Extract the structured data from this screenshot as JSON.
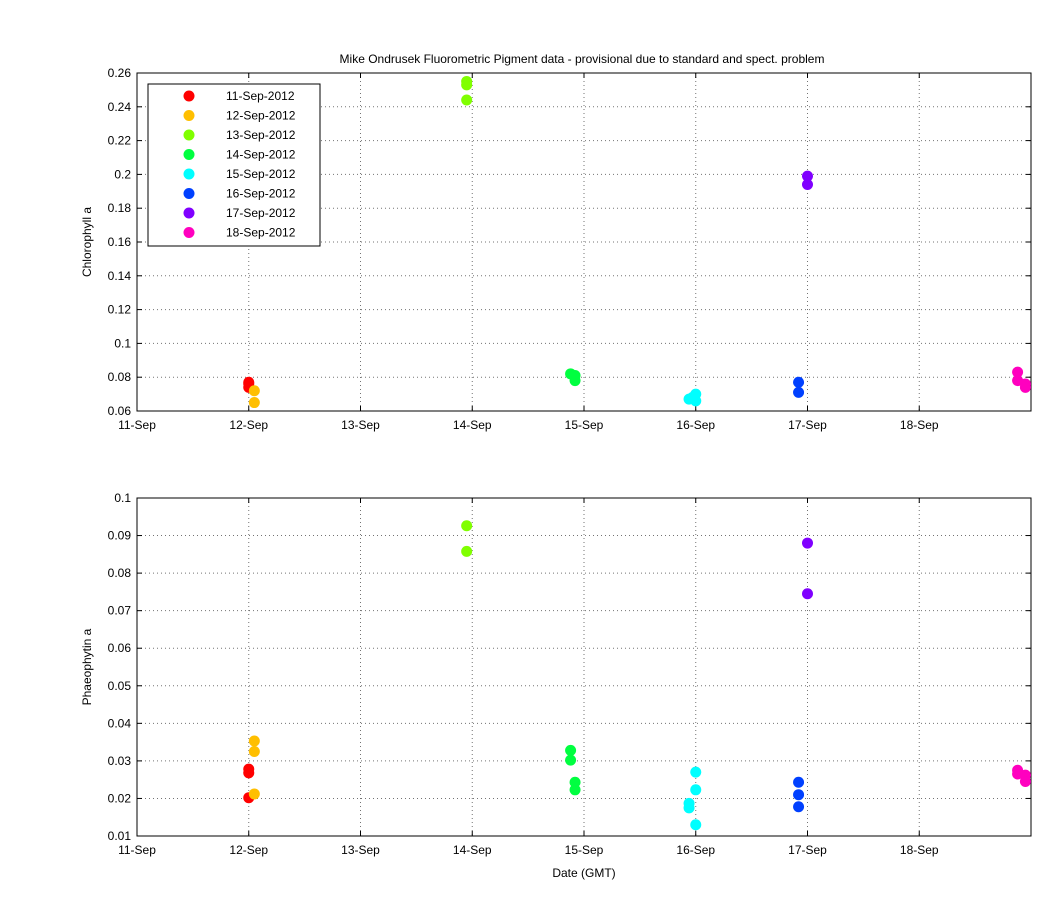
{
  "figure": {
    "title": "Mike Ondrusek Fluorometric Pigment data - provisional due to standard and spect. problem"
  },
  "chart_data": [
    {
      "type": "scatter",
      "title": "Mike Ondrusek Fluorometric Pigment data - provisional due to standard and spect. problem",
      "xlabel": "",
      "ylabel": "Chlorophyll a",
      "x_axis": "date (Sep 2012, GMT)",
      "xlim": [
        11.0,
        19.0
      ],
      "ylim": [
        0.06,
        0.26
      ],
      "xticks": [
        11,
        12,
        13,
        14,
        15,
        16,
        17,
        18
      ],
      "xticklabels": [
        "11-Sep",
        "12-Sep",
        "13-Sep",
        "14-Sep",
        "15-Sep",
        "16-Sep",
        "17-Sep",
        "18-Sep"
      ],
      "yticks": [
        0.06,
        0.08,
        0.1,
        0.12,
        0.14,
        0.16,
        0.18,
        0.2,
        0.22,
        0.24,
        0.26
      ],
      "yticklabels": [
        "0.06",
        "0.08",
        "0.1",
        "0.12",
        "0.14",
        "0.16",
        "0.18",
        "0.2",
        "0.22",
        "0.24",
        "0.26"
      ],
      "grid": true,
      "legend": "top-left",
      "series": [
        {
          "name": "11-Sep-2012",
          "color": "#ff0000",
          "points": [
            [
              12.0,
              0.077
            ],
            [
              12.0,
              0.074
            ],
            [
              12.0,
              0.076
            ]
          ]
        },
        {
          "name": "12-Sep-2012",
          "color": "#ffbf00",
          "points": [
            [
              12.05,
              0.072
            ],
            [
              12.05,
              0.065
            ]
          ]
        },
        {
          "name": "13-Sep-2012",
          "color": "#80ff00",
          "points": [
            [
              13.95,
              0.255
            ],
            [
              13.95,
              0.253
            ],
            [
              13.95,
              0.244
            ]
          ]
        },
        {
          "name": "14-Sep-2012",
          "color": "#00ff40",
          "points": [
            [
              14.88,
              0.082
            ],
            [
              14.92,
              0.081
            ],
            [
              14.92,
              0.078
            ]
          ]
        },
        {
          "name": "15-Sep-2012",
          "color": "#00ffff",
          "points": [
            [
              15.94,
              0.067
            ],
            [
              15.97,
              0.068
            ],
            [
              16.0,
              0.07
            ],
            [
              16.0,
              0.066
            ]
          ]
        },
        {
          "name": "16-Sep-2012",
          "color": "#0040ff",
          "points": [
            [
              16.92,
              0.077
            ],
            [
              16.92,
              0.071
            ]
          ]
        },
        {
          "name": "17-Sep-2012",
          "color": "#8000ff",
          "points": [
            [
              17.0,
              0.199
            ],
            [
              17.0,
              0.194
            ]
          ]
        },
        {
          "name": "18-Sep-2012",
          "color": "#ff00bf",
          "points": [
            [
              18.88,
              0.083
            ],
            [
              18.88,
              0.078
            ],
            [
              18.95,
              0.076
            ],
            [
              18.95,
              0.074
            ]
          ]
        }
      ]
    },
    {
      "type": "scatter",
      "title": "",
      "xlabel": "Date (GMT)",
      "ylabel": "Phaeophytin a",
      "x_axis": "date (Sep 2012, GMT)",
      "xlim": [
        11.0,
        19.0
      ],
      "ylim": [
        0.01,
        0.1
      ],
      "xticks": [
        11,
        12,
        13,
        14,
        15,
        16,
        17,
        18
      ],
      "xticklabels": [
        "11-Sep",
        "12-Sep",
        "13-Sep",
        "14-Sep",
        "15-Sep",
        "16-Sep",
        "17-Sep",
        "18-Sep"
      ],
      "yticks": [
        0.01,
        0.02,
        0.03,
        0.04,
        0.05,
        0.06,
        0.07,
        0.08,
        0.09,
        0.1
      ],
      "yticklabels": [
        "0.01",
        "0.02",
        "0.03",
        "0.04",
        "0.05",
        "0.06",
        "0.07",
        "0.08",
        "0.09",
        "0.1"
      ],
      "grid": true,
      "legend": "none",
      "series": [
        {
          "name": "11-Sep-2012",
          "color": "#ff0000",
          "points": [
            [
              12.0,
              0.0278
            ],
            [
              12.0,
              0.0268
            ],
            [
              12.0,
              0.0202
            ]
          ]
        },
        {
          "name": "12-Sep-2012",
          "color": "#ffbf00",
          "points": [
            [
              12.05,
              0.0353
            ],
            [
              12.05,
              0.0325
            ],
            [
              12.05,
              0.0212
            ]
          ]
        },
        {
          "name": "13-Sep-2012",
          "color": "#80ff00",
          "points": [
            [
              13.95,
              0.0926
            ],
            [
              13.95,
              0.0858
            ]
          ]
        },
        {
          "name": "14-Sep-2012",
          "color": "#00ff40",
          "points": [
            [
              14.88,
              0.0328
            ],
            [
              14.88,
              0.0302
            ],
            [
              14.92,
              0.0243
            ],
            [
              14.92,
              0.0223
            ]
          ]
        },
        {
          "name": "15-Sep-2012",
          "color": "#00ffff",
          "points": [
            [
              15.94,
              0.0187
            ],
            [
              15.94,
              0.0175
            ],
            [
              16.0,
              0.027
            ],
            [
              16.0,
              0.0223
            ],
            [
              16.0,
              0.013
            ]
          ]
        },
        {
          "name": "16-Sep-2012",
          "color": "#0040ff",
          "points": [
            [
              16.92,
              0.0243
            ],
            [
              16.92,
              0.021
            ],
            [
              16.92,
              0.0178
            ]
          ]
        },
        {
          "name": "17-Sep-2012",
          "color": "#8000ff",
          "points": [
            [
              17.0,
              0.088
            ],
            [
              17.0,
              0.0745
            ]
          ]
        },
        {
          "name": "18-Sep-2012",
          "color": "#ff00bf",
          "points": [
            [
              18.88,
              0.0275
            ],
            [
              18.88,
              0.0265
            ],
            [
              18.95,
              0.0262
            ],
            [
              18.95,
              0.0245
            ]
          ]
        }
      ]
    }
  ]
}
